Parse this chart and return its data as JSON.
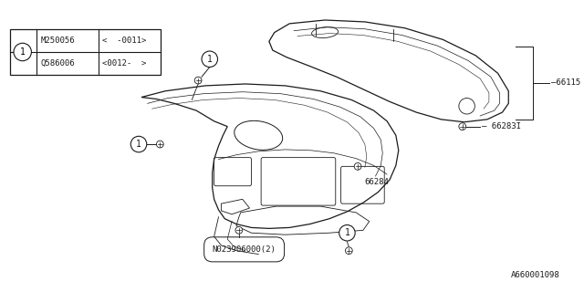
{
  "bg_color": "#ffffff",
  "line_color": "#1a1a1a",
  "watermark": "A660001098",
  "parts_table": {
    "rows": [
      {
        "part_no": "M250056",
        "range": "<  -0011>"
      },
      {
        "part_no": "Q586006",
        "range": "<0012-  >"
      }
    ]
  },
  "font_family": "monospace",
  "font_size_label": 6.5,
  "font_size_watermark": 6.5
}
